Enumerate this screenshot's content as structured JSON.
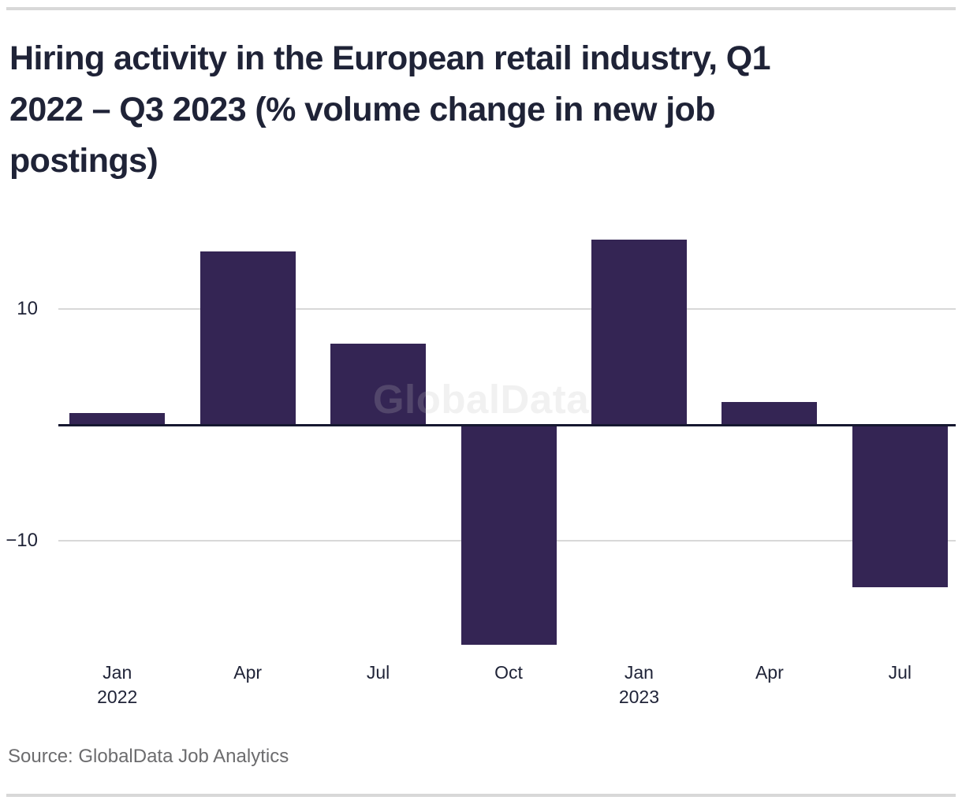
{
  "page": {
    "title": "Hiring activity in the European retail industry, Q1 2022 – Q3 2023 (% volume change in new job postings)",
    "title_lines": [
      "Hiring activity in the European retail industry, Q1",
      "2022 – Q3 2023 (% volume change in new job",
      "postings)"
    ],
    "watermark": "GlobalData",
    "source_note": "Source: GlobalData Job Analytics"
  },
  "colors": {
    "background": "#ffffff",
    "bar_fill": "#342554",
    "heading_text": "#1f2337",
    "axis_text": "#1f2337",
    "gridline": "#d8d8d8",
    "zero_line": "#161830",
    "divider_rule": "#d8d8d8",
    "source_text": "#6c6c6e",
    "watermark_text": "#bebebe"
  },
  "chart_data": {
    "type": "bar",
    "title": "Hiring activity in the European retail industry, Q1 2022 – Q3 2023 (% volume change in new job postings)",
    "series_name": "% volume change in new job postings",
    "categories": [
      "Jan 2022",
      "Apr 2022",
      "Jul 2022",
      "Oct 2022",
      "Jan 2023",
      "Apr 2023",
      "Jul 2023"
    ],
    "x_tick_lines": [
      [
        "Jan",
        "2022"
      ],
      [
        "Apr"
      ],
      [
        "Jul"
      ],
      [
        "Oct"
      ],
      [
        "Jan",
        "2023"
      ],
      [
        "Apr"
      ],
      [
        "Jul"
      ]
    ],
    "values": [
      1,
      15,
      7,
      -19,
      16,
      2,
      -14
    ],
    "y_ticks": [
      {
        "value": 10,
        "label": "10"
      },
      {
        "value": -10,
        "label": "−10"
      }
    ],
    "ylim": [
      -20,
      17.5
    ],
    "xlabel": "",
    "ylabel": "",
    "grid": "horizontal gridlines at +10 and -10, dark baseline at 0",
    "legend": "none",
    "watermark": "GlobalData",
    "source": "GlobalData Job Analytics"
  }
}
